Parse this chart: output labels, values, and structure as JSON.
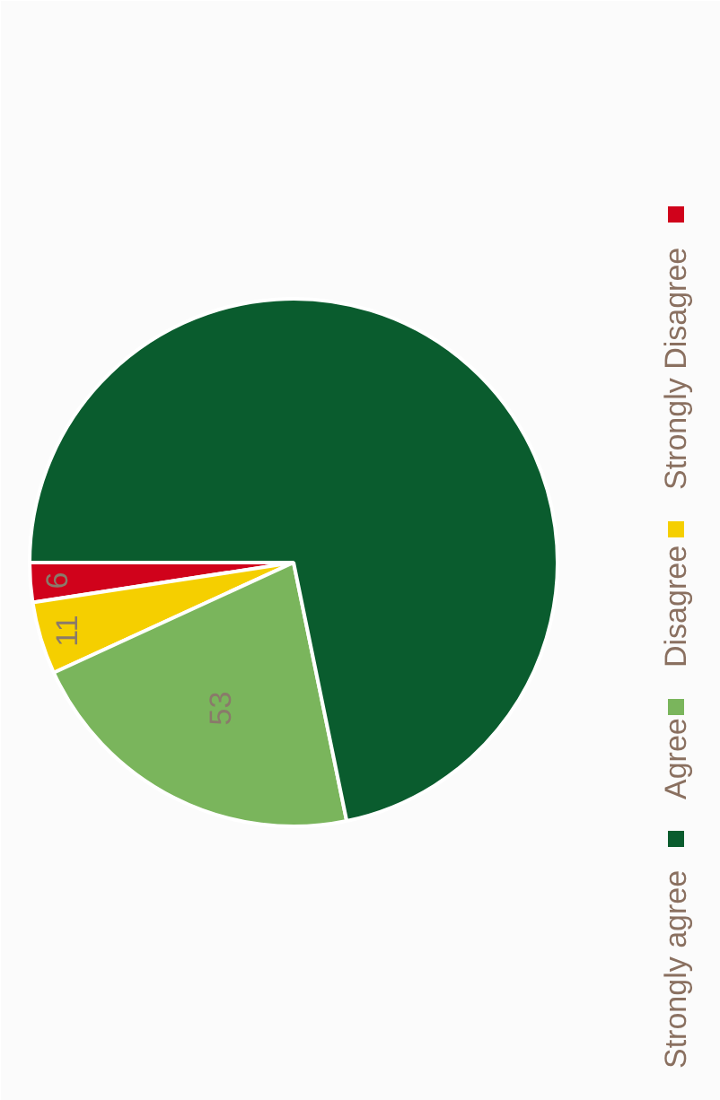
{
  "chart_data": {
    "type": "pie",
    "categories": [
      "Strongly agree",
      "Agree",
      "Disagree",
      "Strongly Disagree"
    ],
    "values": [
      178,
      53,
      11,
      6
    ],
    "colors": [
      "#0a5c2e",
      "#7ab55c",
      "#f5cf00",
      "#d0021b"
    ],
    "value_labels": [
      null,
      "53",
      "11",
      "6"
    ],
    "legend": "right"
  }
}
